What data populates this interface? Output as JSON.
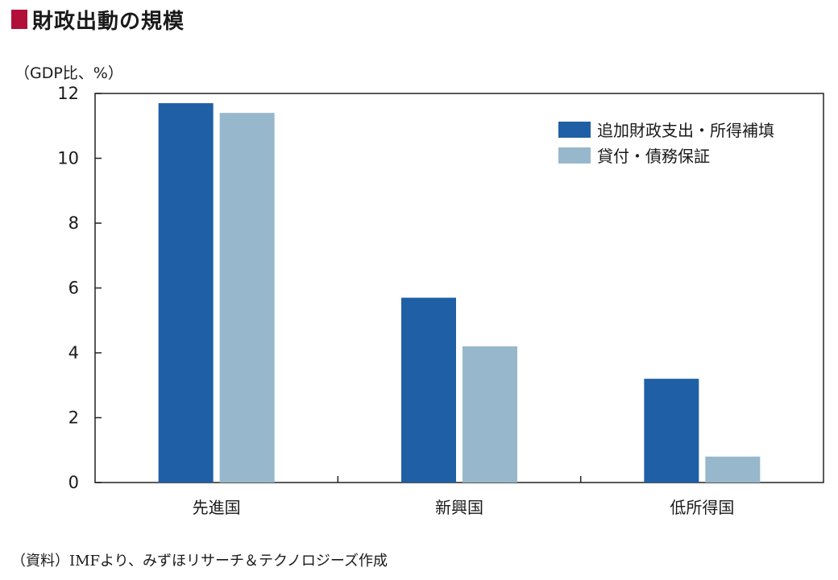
{
  "header": {
    "title": "財政出動の規模",
    "accent_color": "#b0103a"
  },
  "chart_data": {
    "type": "bar",
    "categories": [
      "先進国",
      "新興国",
      "低所得国"
    ],
    "series": [
      {
        "name": "追加財政支出・所得補填",
        "values": [
          11.7,
          5.7,
          3.2
        ],
        "color": "#1f5fa5"
      },
      {
        "name": "貸付・債務保証",
        "values": [
          11.4,
          4.2,
          0.8
        ],
        "color": "#97b8cc"
      }
    ],
    "ylabel": "（GDP比、%）",
    "ylim": [
      0,
      12
    ],
    "yticks": [
      0,
      2,
      4,
      6,
      8,
      10,
      12
    ],
    "grid": false,
    "legend_position": "top-right"
  },
  "footer": {
    "source": "（資料）IMFより、みずほリサーチ＆テクノロジーズ作成"
  }
}
